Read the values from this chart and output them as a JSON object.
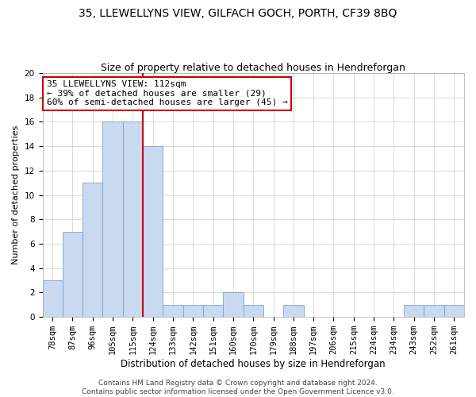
{
  "title": "35, LLEWELLYNS VIEW, GILFACH GOCH, PORTH, CF39 8BQ",
  "subtitle": "Size of property relative to detached houses in Hendreforgan",
  "xlabel": "Distribution of detached houses by size in Hendreforgan",
  "ylabel": "Number of detached properties",
  "bin_labels": [
    "78sqm",
    "87sqm",
    "96sqm",
    "105sqm",
    "115sqm",
    "124sqm",
    "133sqm",
    "142sqm",
    "151sqm",
    "160sqm",
    "170sqm",
    "179sqm",
    "188sqm",
    "197sqm",
    "206sqm",
    "215sqm",
    "224sqm",
    "234sqm",
    "243sqm",
    "252sqm",
    "261sqm"
  ],
  "bar_values": [
    3,
    7,
    11,
    16,
    16,
    14,
    1,
    1,
    1,
    2,
    1,
    0,
    1,
    0,
    0,
    0,
    0,
    0,
    1,
    1,
    1
  ],
  "bar_color": "#c8d9f0",
  "bar_edge_color": "#7ba3cc",
  "vline_x": 4.5,
  "vline_color": "#cc0000",
  "annotation_text": "35 LLEWELLYNS VIEW: 112sqm\n← 39% of detached houses are smaller (29)\n60% of semi-detached houses are larger (45) →",
  "annotation_box_color": "#ffffff",
  "annotation_box_edge_color": "#cc0000",
  "ylim": [
    0,
    20
  ],
  "yticks": [
    0,
    2,
    4,
    6,
    8,
    10,
    12,
    14,
    16,
    18,
    20
  ],
  "footnote": "Contains HM Land Registry data © Crown copyright and database right 2024.\nContains public sector information licensed under the Open Government Licence v3.0.",
  "title_fontsize": 10,
  "subtitle_fontsize": 9,
  "xlabel_fontsize": 8.5,
  "ylabel_fontsize": 8,
  "tick_fontsize": 7.5,
  "annotation_fontsize": 8,
  "footnote_fontsize": 6.5
}
